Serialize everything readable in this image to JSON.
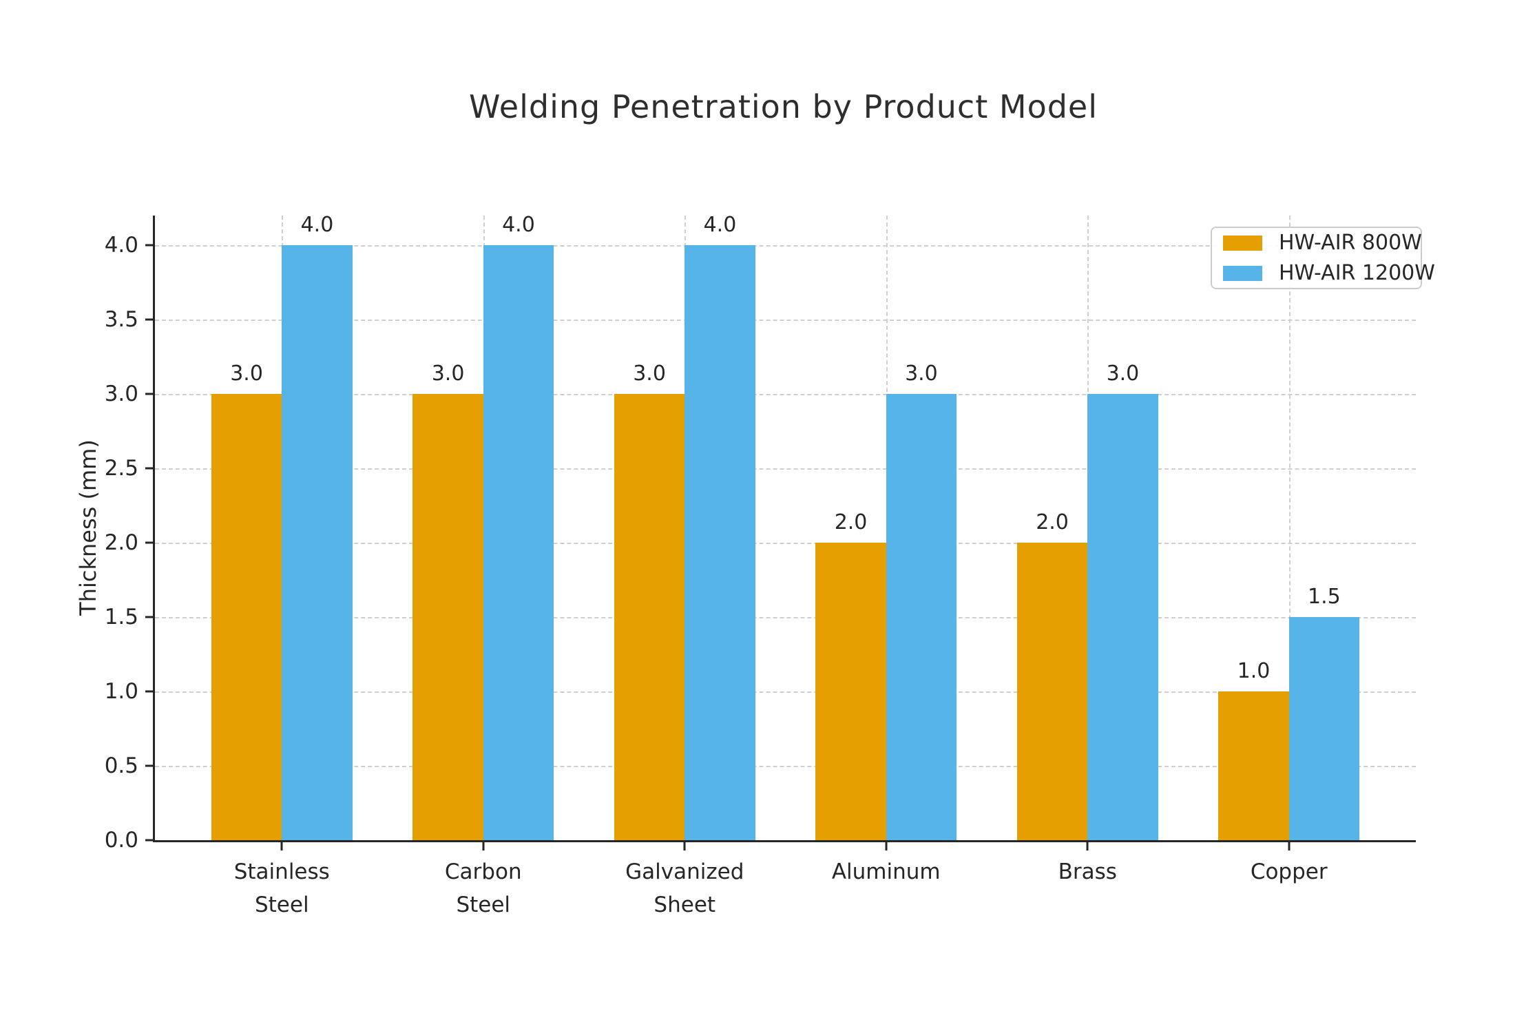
{
  "chart_data": {
    "type": "bar",
    "title": "Welding Penetration by Product Model",
    "xlabel": "",
    "ylabel": "Thickness (mm)",
    "categories": [
      "Stainless\nSteel",
      "Carbon\nSteel",
      "Galvanized\nSheet",
      "Aluminum",
      "Brass",
      "Copper"
    ],
    "series": [
      {
        "name": "HW-AIR 800W",
        "color": "#E69F00",
        "values": [
          3.0,
          3.0,
          3.0,
          2.0,
          2.0,
          1.0
        ]
      },
      {
        "name": "HW-AIR 1200W",
        "color": "#56B4E9",
        "values": [
          4.0,
          4.0,
          4.0,
          3.0,
          3.0,
          1.5
        ]
      }
    ],
    "yticks": [
      0.0,
      0.5,
      1.0,
      1.5,
      2.0,
      2.5,
      3.0,
      3.5,
      4.0
    ],
    "ylim": [
      0,
      4.2
    ],
    "xlim": [
      -0.63,
      5.63
    ],
    "bar_width": 0.35,
    "grid": "both-dashed",
    "legend_position": "upper-right",
    "value_labels_decimals": 1,
    "colors": {
      "axis": "#262626",
      "gridline": "#cfcfcf",
      "background": "#ffffff",
      "series_orange": "#E69F00",
      "series_blue": "#56B4E9"
    }
  }
}
